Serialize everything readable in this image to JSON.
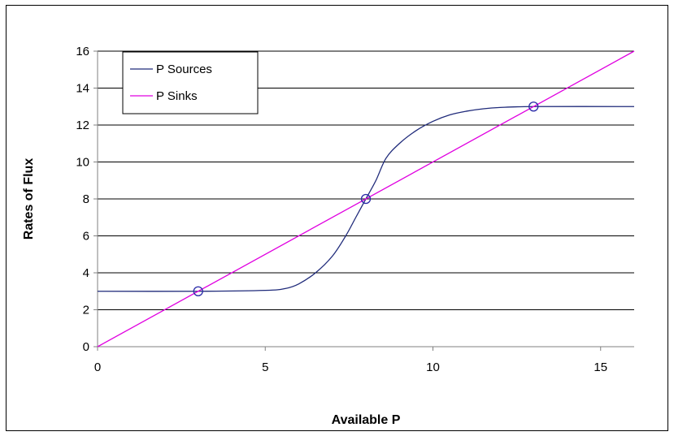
{
  "chart_data": {
    "type": "line",
    "xlabel": "Available P",
    "ylabel": "Rates of Flux",
    "xlim": [
      0,
      16
    ],
    "ylim": [
      0,
      16
    ],
    "xticks": [
      0,
      5,
      10,
      15
    ],
    "yticks": [
      0,
      2,
      4,
      6,
      8,
      10,
      12,
      14,
      16
    ],
    "grid": "horizontal",
    "legend_position": "top-left",
    "series": [
      {
        "name": "P Sources",
        "color": "#1f2a7a",
        "x": [
          0,
          3,
          5,
          5.6,
          6.0,
          6.5,
          7.0,
          7.4,
          7.7,
          8.0,
          8.3,
          8.6,
          9.0,
          9.5,
          10.0,
          10.5,
          11.0,
          11.5,
          12.0,
          13.0,
          16.0
        ],
        "y": [
          3.0,
          3.0,
          3.05,
          3.15,
          3.4,
          4.0,
          4.9,
          6.0,
          7.0,
          8.0,
          9.0,
          10.2,
          11.0,
          11.7,
          12.2,
          12.55,
          12.75,
          12.88,
          12.95,
          13.0,
          13.0
        ]
      },
      {
        "name": "P Sinks",
        "color": "#e000e0",
        "x": [
          0,
          16
        ],
        "y": [
          0,
          16
        ]
      }
    ],
    "equilibria": [
      {
        "x": 3,
        "y": 3
      },
      {
        "x": 8,
        "y": 8
      },
      {
        "x": 13,
        "y": 13
      }
    ]
  }
}
